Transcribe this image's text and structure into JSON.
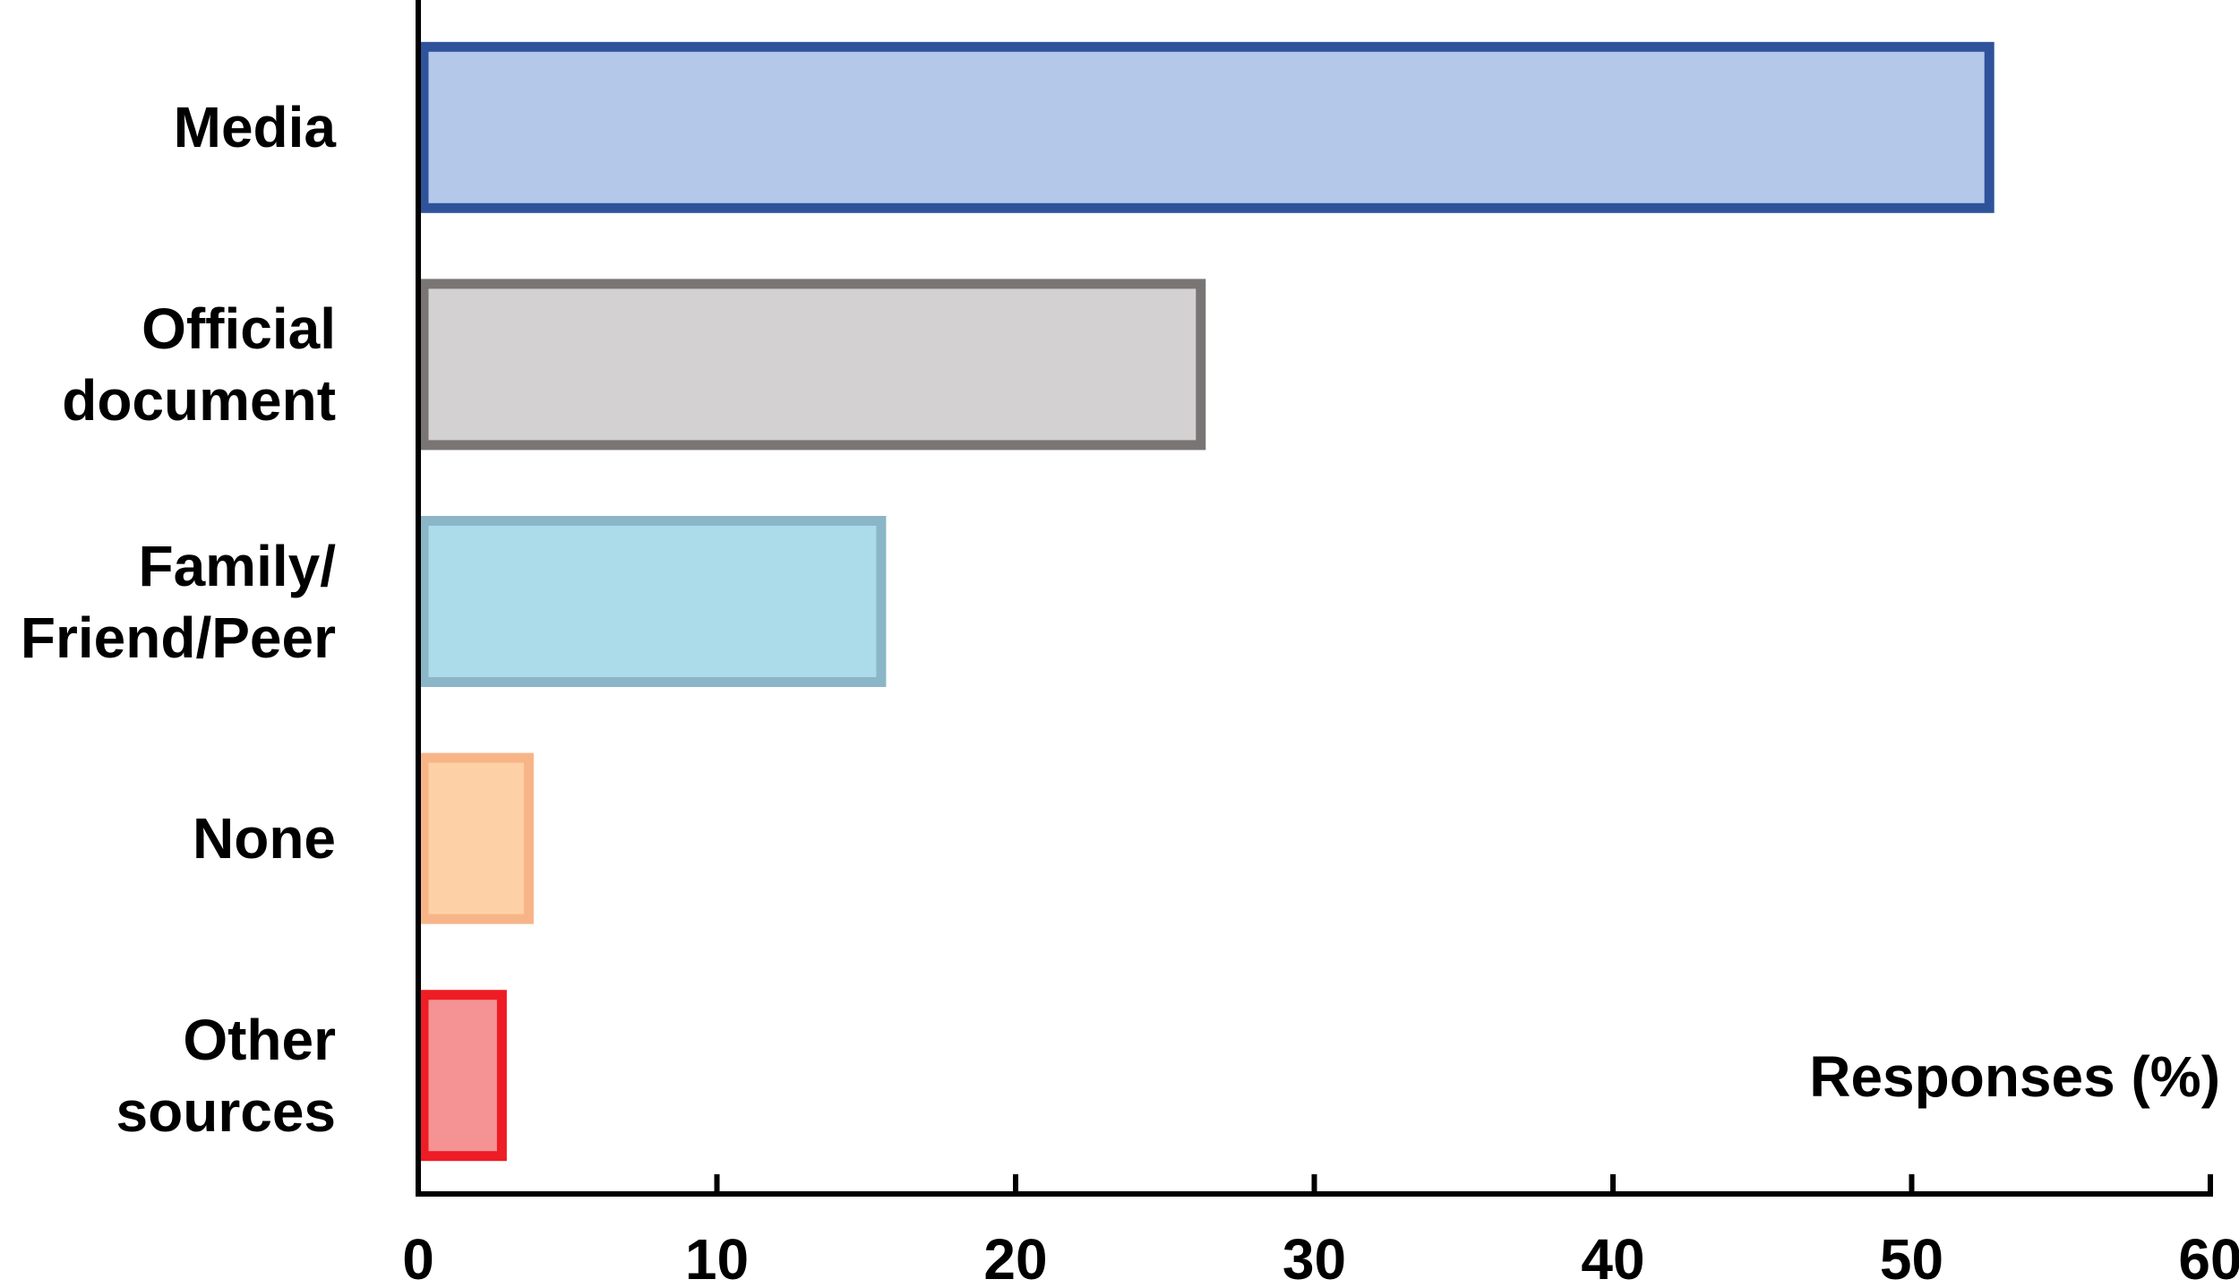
{
  "chart_data": {
    "type": "hbar",
    "categories": [
      "Media",
      "Official\ndocument",
      "Family/\nFriend/Peer",
      "None",
      "Other\nsources"
    ],
    "values": [
      52.6,
      26.2,
      15.5,
      3.7,
      2.8
    ],
    "colors": [
      "#b4c8ea",
      "#d3d1d2",
      "#acdbea",
      "#fdd1a5",
      "#f59394"
    ],
    "edge_colors": [
      "#2f539b",
      "#7a7575",
      "#8bb6c8",
      "#f7b587",
      "#ee1c24"
    ],
    "x_label": "Responses (%)",
    "xlim": [
      0,
      60
    ],
    "xticks": [
      0,
      10,
      20,
      30,
      40,
      50,
      60
    ]
  }
}
